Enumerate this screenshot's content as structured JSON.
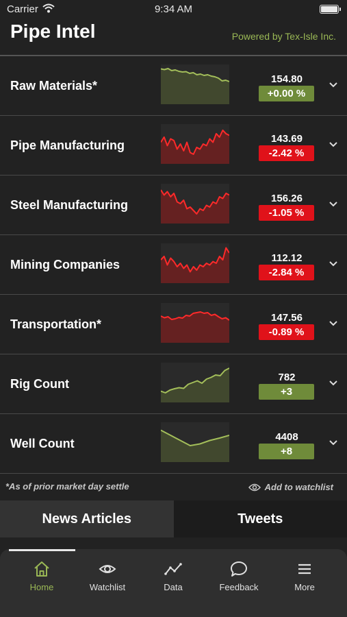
{
  "status_bar": {
    "carrier": "Carrier",
    "time": "9:34 AM"
  },
  "header": {
    "title": "Pipe Intel",
    "powered_by": "Powered by Tex-Isle Inc."
  },
  "colors": {
    "positive": "#6f8b3a",
    "negative": "#e0121a",
    "accent": "#9ab855"
  },
  "rows": [
    {
      "label": "Raw Materials*",
      "value": "154.80",
      "change": "+0.00 %",
      "trend": "positive",
      "spark": [
        0.95,
        0.93,
        0.96,
        0.9,
        0.92,
        0.88,
        0.86,
        0.87,
        0.82,
        0.84,
        0.78,
        0.8,
        0.76,
        0.78,
        0.74,
        0.72,
        0.68,
        0.6,
        0.62,
        0.58
      ]
    },
    {
      "label": "Pipe Manufacturing",
      "value": "143.69",
      "change": "-2.42 %",
      "trend": "negative",
      "spark": [
        0.55,
        0.7,
        0.45,
        0.65,
        0.6,
        0.35,
        0.5,
        0.3,
        0.55,
        0.25,
        0.2,
        0.4,
        0.35,
        0.5,
        0.45,
        0.65,
        0.55,
        0.8,
        0.7,
        0.9,
        0.8,
        0.75
      ]
    },
    {
      "label": "Steel Manufacturing",
      "value": "156.26",
      "change": "-1.05 %",
      "trend": "negative",
      "spark": [
        0.9,
        0.75,
        0.85,
        0.7,
        0.8,
        0.55,
        0.5,
        0.6,
        0.35,
        0.4,
        0.3,
        0.2,
        0.35,
        0.3,
        0.45,
        0.4,
        0.55,
        0.5,
        0.7,
        0.65,
        0.8,
        0.75
      ]
    },
    {
      "label": "Mining Companies",
      "value": "112.12",
      "change": "-2.84 %",
      "trend": "negative",
      "spark": [
        0.6,
        0.7,
        0.45,
        0.65,
        0.55,
        0.4,
        0.5,
        0.35,
        0.45,
        0.25,
        0.4,
        0.3,
        0.45,
        0.4,
        0.5,
        0.45,
        0.55,
        0.5,
        0.7,
        0.6,
        0.95,
        0.8
      ]
    },
    {
      "label": "Transportation*",
      "value": "147.56",
      "change": "-0.89 %",
      "trend": "negative",
      "spark": [
        0.7,
        0.65,
        0.68,
        0.6,
        0.62,
        0.66,
        0.64,
        0.72,
        0.7,
        0.78,
        0.8,
        0.82,
        0.78,
        0.8,
        0.72,
        0.75,
        0.68,
        0.62,
        0.65,
        0.58
      ]
    },
    {
      "label": "Rig Count",
      "value": "782",
      "change": "+3",
      "trend": "positive",
      "spark": [
        0.25,
        0.2,
        0.28,
        0.32,
        0.35,
        0.33,
        0.45,
        0.5,
        0.55,
        0.48,
        0.6,
        0.65,
        0.72,
        0.7,
        0.85,
        0.92
      ]
    },
    {
      "label": "Well Count",
      "value": "4408",
      "change": "+8",
      "trend": "positive",
      "spark": [
        0.85,
        0.7,
        0.55,
        0.4,
        0.45,
        0.55,
        0.62,
        0.7
      ]
    }
  ],
  "footnote": "*As of prior market day settle",
  "add_watchlist": "Add to watchlist",
  "tabs": [
    {
      "label": "News Articles"
    },
    {
      "label": "Tweets"
    }
  ],
  "nav": [
    {
      "label": "Home",
      "icon": "home-icon"
    },
    {
      "label": "Watchlist",
      "icon": "eye-icon"
    },
    {
      "label": "Data",
      "icon": "chart-line-icon"
    },
    {
      "label": "Feedback",
      "icon": "chat-bubble-icon"
    },
    {
      "label": "More",
      "icon": "menu-icon"
    }
  ]
}
